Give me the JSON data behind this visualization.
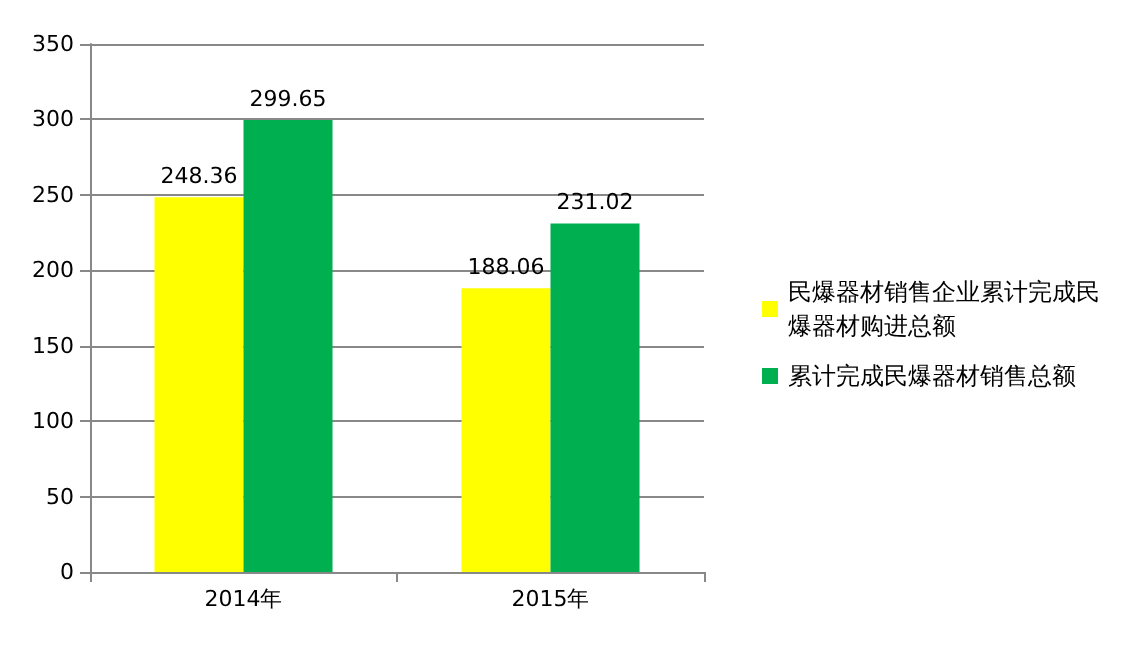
{
  "chart_data": {
    "type": "bar",
    "categories": [
      "2014年",
      "2015年"
    ],
    "series": [
      {
        "name": "民爆器材销售企业累计完成民爆器材购进总额",
        "color": "#ffff00",
        "values": [
          248.36,
          188.06
        ]
      },
      {
        "name": "累计完成民爆器材销售总额",
        "color": "#00b050",
        "values": [
          299.65,
          231.02
        ]
      }
    ],
    "ylim": [
      0,
      350
    ],
    "yticks": [
      0,
      50,
      100,
      150,
      200,
      250,
      300,
      350
    ],
    "grid": "y",
    "legend": "right",
    "data_labels": true
  }
}
